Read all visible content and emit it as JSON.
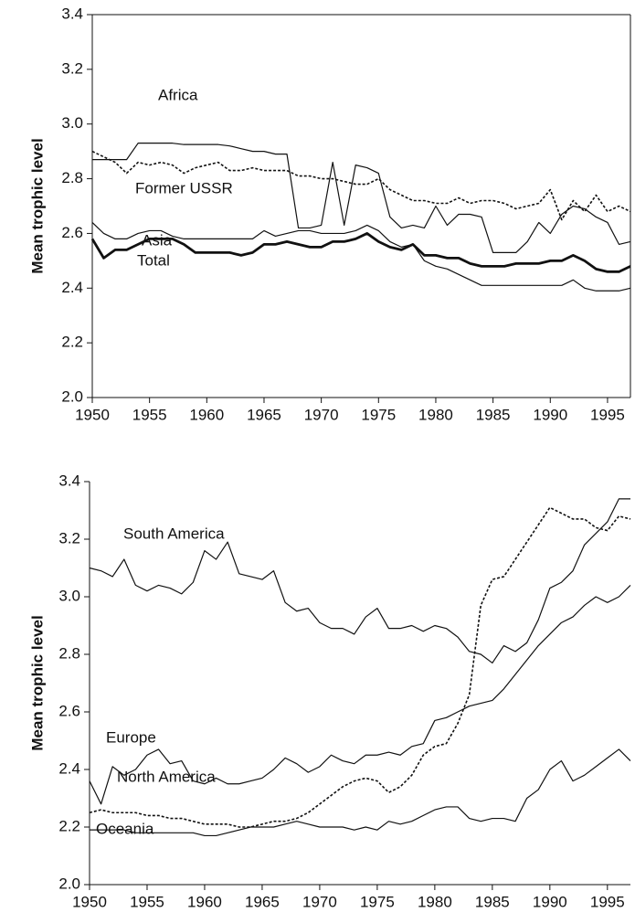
{
  "chart_data": [
    {
      "type": "line",
      "y_label": "Mean trophic level",
      "frame": true,
      "x": [
        1950,
        1951,
        1952,
        1953,
        1954,
        1955,
        1956,
        1957,
        1958,
        1959,
        1960,
        1961,
        1962,
        1963,
        1964,
        1965,
        1966,
        1967,
        1968,
        1969,
        1970,
        1971,
        1972,
        1973,
        1974,
        1975,
        1976,
        1977,
        1978,
        1979,
        1980,
        1981,
        1982,
        1983,
        1984,
        1985,
        1986,
        1987,
        1988,
        1989,
        1990,
        1991,
        1992,
        1993,
        1994,
        1995,
        1996,
        1997
      ],
      "xlim": [
        1950,
        1997
      ],
      "xticks": [
        1950,
        1955,
        1960,
        1965,
        1970,
        1975,
        1980,
        1985,
        1990,
        1995
      ],
      "ylim": [
        2,
        3.4
      ],
      "yticks": [
        {
          "value": 2,
          "label": "2.0"
        },
        2.2,
        2.4,
        2.6,
        2.8,
        {
          "value": 3,
          "label": "3.0"
        },
        3.2,
        3.4
      ],
      "series": [
        {
          "name": "Africa",
          "color": "#111111",
          "line_style": "solid",
          "line_width": 1.2,
          "values": [
            2.87,
            2.87,
            2.87,
            2.87,
            2.93,
            2.93,
            2.93,
            2.93,
            2.925,
            2.925,
            2.925,
            2.925,
            2.92,
            2.91,
            2.9,
            2.9,
            2.89,
            2.89,
            2.62,
            2.62,
            2.63,
            2.86,
            2.63,
            2.85,
            2.84,
            2.82,
            2.66,
            2.62,
            2.63,
            2.62,
            2.7,
            2.63,
            2.67,
            2.67,
            2.66,
            2.53,
            2.53,
            2.53,
            2.57,
            2.64,
            2.6,
            2.67,
            2.7,
            2.69,
            2.66,
            2.64,
            2.56,
            2.57
          ]
        },
        {
          "name": "Former USSR",
          "color": "#111111",
          "line_style": "dashed",
          "line_width": 1.6,
          "values": [
            2.9,
            2.88,
            2.86,
            2.82,
            2.86,
            2.85,
            2.86,
            2.85,
            2.82,
            2.84,
            2.85,
            2.86,
            2.83,
            2.83,
            2.84,
            2.83,
            2.83,
            2.83,
            2.81,
            2.81,
            2.8,
            2.8,
            2.79,
            2.78,
            2.78,
            2.8,
            2.76,
            2.74,
            2.72,
            2.72,
            2.71,
            2.71,
            2.73,
            2.71,
            2.72,
            2.72,
            2.71,
            2.69,
            2.7,
            2.71,
            2.76,
            2.65,
            2.72,
            2.68,
            2.74,
            2.68,
            2.7,
            2.68
          ]
        },
        {
          "name": "Asia",
          "color": "#111111",
          "line_style": "solid",
          "line_width": 1.2,
          "values": [
            2.64,
            2.6,
            2.58,
            2.58,
            2.6,
            2.61,
            2.61,
            2.59,
            2.58,
            2.58,
            2.58,
            2.58,
            2.58,
            2.58,
            2.58,
            2.61,
            2.59,
            2.6,
            2.61,
            2.61,
            2.6,
            2.6,
            2.6,
            2.61,
            2.63,
            2.61,
            2.57,
            2.55,
            2.56,
            2.5,
            2.48,
            2.47,
            2.45,
            2.43,
            2.41,
            2.41,
            2.41,
            2.41,
            2.41,
            2.41,
            2.41,
            2.41,
            2.43,
            2.4,
            2.39,
            2.39,
            2.39,
            2.4
          ]
        },
        {
          "name": "Total",
          "color": "#111111",
          "line_style": "solid",
          "line_width": 2.8,
          "values": [
            2.58,
            2.51,
            2.54,
            2.54,
            2.56,
            2.58,
            2.58,
            2.58,
            2.56,
            2.53,
            2.53,
            2.53,
            2.53,
            2.52,
            2.53,
            2.56,
            2.56,
            2.57,
            2.56,
            2.55,
            2.55,
            2.57,
            2.57,
            2.58,
            2.6,
            2.57,
            2.55,
            2.54,
            2.56,
            2.52,
            2.52,
            2.51,
            2.51,
            2.49,
            2.48,
            2.48,
            2.48,
            2.49,
            2.49,
            2.49,
            2.5,
            2.5,
            2.52,
            2.5,
            2.47,
            2.46,
            2.46,
            2.48
          ]
        }
      ]
    },
    {
      "type": "line",
      "y_label": "Mean trophic level",
      "frame": false,
      "x": [
        1950,
        1951,
        1952,
        1953,
        1954,
        1955,
        1956,
        1957,
        1958,
        1959,
        1960,
        1961,
        1962,
        1963,
        1964,
        1965,
        1966,
        1967,
        1968,
        1969,
        1970,
        1971,
        1972,
        1973,
        1974,
        1975,
        1976,
        1977,
        1978,
        1979,
        1980,
        1981,
        1982,
        1983,
        1984,
        1985,
        1986,
        1987,
        1988,
        1989,
        1990,
        1991,
        1992,
        1993,
        1994,
        1995,
        1996,
        1997
      ],
      "xlim": [
        1950,
        1997
      ],
      "xticks": [
        1950,
        1955,
        1960,
        1965,
        1970,
        1975,
        1980,
        1985,
        1990,
        1995
      ],
      "ylim": [
        2,
        3.4
      ],
      "yticks": [
        {
          "value": 2,
          "label": "2.0"
        },
        2.2,
        2.4,
        2.6,
        2.8,
        {
          "value": 3,
          "label": "3.0"
        },
        3.2,
        3.4
      ],
      "series": [
        {
          "name": "South America",
          "color": "#111111",
          "line_style": "solid",
          "line_width": 1.2,
          "values": [
            3.1,
            3.09,
            3.07,
            3.13,
            3.04,
            3.02,
            3.04,
            3.03,
            3.01,
            3.05,
            3.16,
            3.13,
            3.19,
            3.08,
            3.07,
            3.06,
            3.09,
            2.98,
            2.95,
            2.96,
            2.91,
            2.89,
            2.89,
            2.87,
            2.93,
            2.96,
            2.89,
            2.89,
            2.9,
            2.88,
            2.9,
            2.89,
            2.86,
            2.81,
            2.8,
            2.77,
            2.83,
            2.81,
            2.84,
            2.92,
            3.03,
            3.05,
            3.09,
            3.18,
            3.22,
            3.26,
            3.34,
            3.34
          ]
        },
        {
          "name": "Europe",
          "color": "#111111",
          "line_style": "solid",
          "line_width": 1.2,
          "values": [
            2.36,
            2.28,
            2.41,
            2.38,
            2.4,
            2.45,
            2.47,
            2.42,
            2.43,
            2.36,
            2.35,
            2.37,
            2.35,
            2.35,
            2.36,
            2.37,
            2.4,
            2.44,
            2.42,
            2.39,
            2.41,
            2.45,
            2.43,
            2.42,
            2.45,
            2.45,
            2.46,
            2.45,
            2.48,
            2.49,
            2.57,
            2.58,
            2.6,
            2.62,
            2.63,
            2.64,
            2.68,
            2.73,
            2.78,
            2.83,
            2.87,
            2.91,
            2.93,
            2.97,
            3,
            2.98,
            3,
            3.04
          ]
        },
        {
          "name": "North America",
          "color": "#111111",
          "line_style": "dashed",
          "line_width": 1.6,
          "values": [
            2.25,
            2.26,
            2.25,
            2.25,
            2.25,
            2.24,
            2.24,
            2.23,
            2.23,
            2.22,
            2.21,
            2.21,
            2.21,
            2.2,
            2.2,
            2.21,
            2.22,
            2.22,
            2.23,
            2.25,
            2.28,
            2.31,
            2.34,
            2.36,
            2.37,
            2.36,
            2.32,
            2.34,
            2.38,
            2.45,
            2.48,
            2.49,
            2.56,
            2.66,
            2.97,
            3.06,
            3.07,
            3.13,
            3.19,
            3.25,
            3.31,
            3.29,
            3.27,
            3.27,
            3.24,
            3.23,
            3.28,
            3.27
          ]
        },
        {
          "name": "Oceania",
          "color": "#111111",
          "line_style": "solid",
          "line_width": 1.2,
          "values": [
            2.19,
            2.19,
            2.19,
            2.19,
            2.18,
            2.18,
            2.18,
            2.18,
            2.18,
            2.18,
            2.17,
            2.17,
            2.18,
            2.19,
            2.2,
            2.2,
            2.2,
            2.21,
            2.22,
            2.21,
            2.2,
            2.2,
            2.2,
            2.19,
            2.2,
            2.19,
            2.22,
            2.21,
            2.22,
            2.24,
            2.26,
            2.27,
            2.27,
            2.23,
            2.22,
            2.23,
            2.23,
            2.22,
            2.3,
            2.33,
            2.4,
            2.43,
            2.36,
            2.38,
            2.41,
            2.44,
            2.47,
            2.43
          ]
        }
      ]
    }
  ]
}
